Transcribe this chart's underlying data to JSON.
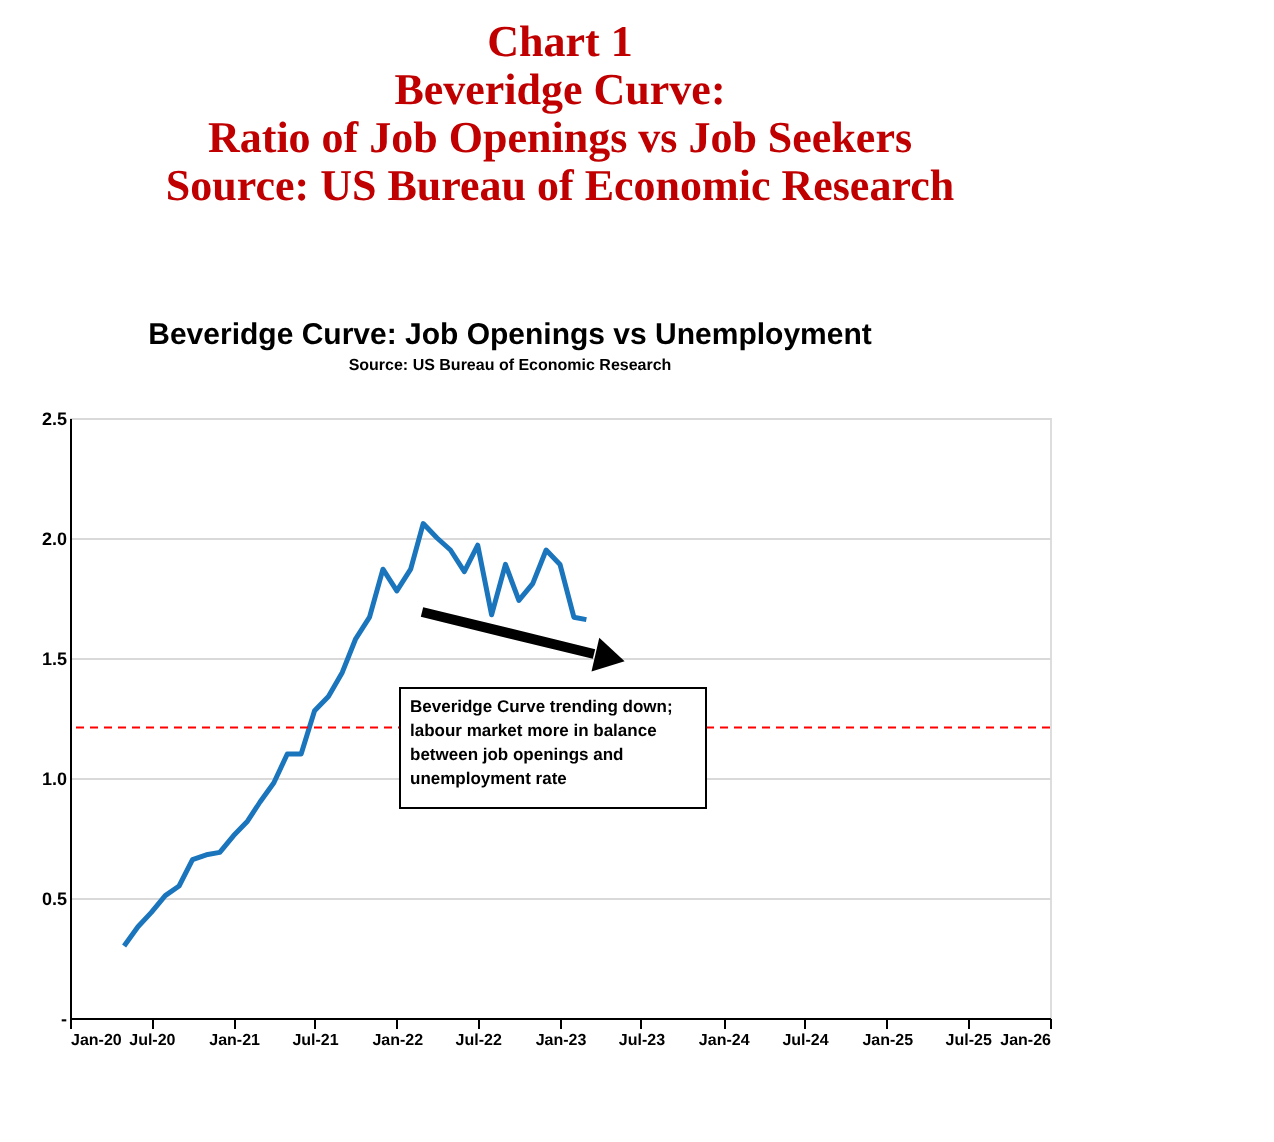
{
  "chart_data": {
    "type": "line",
    "title": "Chart 1\nBeveridge Curve:\nRatio of Job Openings vs Job Seekers\nSource: US Bureau of Economic Research",
    "annotations": [
      "Beveridge Curve: Job Openings vs Unemployment",
      "Source: US Bureau of Economic Research",
      "Beveridge Curve trending down;\nlabour market more in balance\nbetween job openings and\nunemployment rate"
    ],
    "x": [
      "2020-05",
      "2020-06",
      "2020-07",
      "2020-08",
      "2020-09",
      "2020-10",
      "2020-11",
      "2020-12",
      "2021-01",
      "2021-02",
      "2021-03",
      "2021-04",
      "2021-05",
      "2021-06",
      "2021-07",
      "2021-08",
      "2021-09",
      "2021-10",
      "2021-11",
      "2021-12",
      "2022-01",
      "2022-02",
      "2022-03",
      "2022-04",
      "2022-05",
      "2022-06",
      "2022-07",
      "2022-08",
      "2022-09",
      "2022-10",
      "2022-11",
      "2022-12",
      "2023-01",
      "2023-02",
      "2023-03"
    ],
    "series": [
      {
        "color": "#1a75bc",
        "values": [
          0.3,
          0.38,
          0.44,
          0.51,
          0.55,
          0.66,
          0.68,
          0.69,
          0.76,
          0.82,
          0.9,
          0.98,
          1.1,
          1.1,
          1.28,
          1.34,
          1.44,
          1.58,
          1.67,
          1.87,
          1.78,
          1.87,
          2.06,
          2.0,
          1.95,
          1.86,
          1.97,
          1.68,
          1.89,
          1.74,
          1.81,
          1.95,
          1.89,
          1.67,
          1.66
        ]
      }
    ],
    "xlim": [
      "2020-01",
      "2026-01"
    ],
    "xticks": [
      {
        "value": "2020-01",
        "label": "Jan-20"
      },
      {
        "value": "2020-07",
        "label": "Jul-20"
      },
      {
        "value": "2021-01",
        "label": "Jan-21"
      },
      {
        "value": "2021-07",
        "label": "Jul-21"
      },
      {
        "value": "2022-01",
        "label": "Jan-22"
      },
      {
        "value": "2022-07",
        "label": "Jul-22"
      },
      {
        "value": "2023-01",
        "label": "Jan-23"
      },
      {
        "value": "2023-07",
        "label": "Jul-23"
      },
      {
        "value": "2024-01",
        "label": "Jan-24"
      },
      {
        "value": "2024-07",
        "label": "Jul-24"
      },
      {
        "value": "2025-01",
        "label": "Jan-25"
      },
      {
        "value": "2025-07",
        "label": "Jul-25"
      },
      {
        "value": "2026-01",
        "label": "Jan-26"
      }
    ],
    "ylim": [
      0,
      2.5
    ],
    "yticks": [
      {
        "value": 0,
        "label": "-"
      },
      0.5,
      {
        "value": 1.0,
        "label": "1.0"
      },
      1.5,
      {
        "value": 2.0,
        "label": "2.0"
      },
      2.5
    ],
    "ref_lines": [
      {
        "axis": "y",
        "value": 1.21,
        "label": null,
        "color": "#ff0000",
        "line_style": "dashed"
      }
    ],
    "grid": "y",
    "marker": "none",
    "line_style": "solid"
  }
}
